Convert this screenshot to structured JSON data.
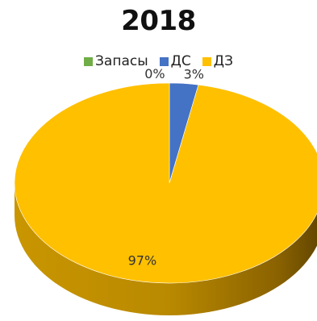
{
  "chart_data": {
    "type": "pie",
    "title": "2018",
    "categories": [
      "Запасы",
      "ДС",
      "ДЗ"
    ],
    "values": [
      0,
      3,
      97
    ],
    "data_labels": [
      "0%",
      "3%",
      "97%"
    ],
    "colors": [
      "#70ad47",
      "#4472c4",
      "#ffc000"
    ],
    "legend_position": "top",
    "style": "3d"
  }
}
